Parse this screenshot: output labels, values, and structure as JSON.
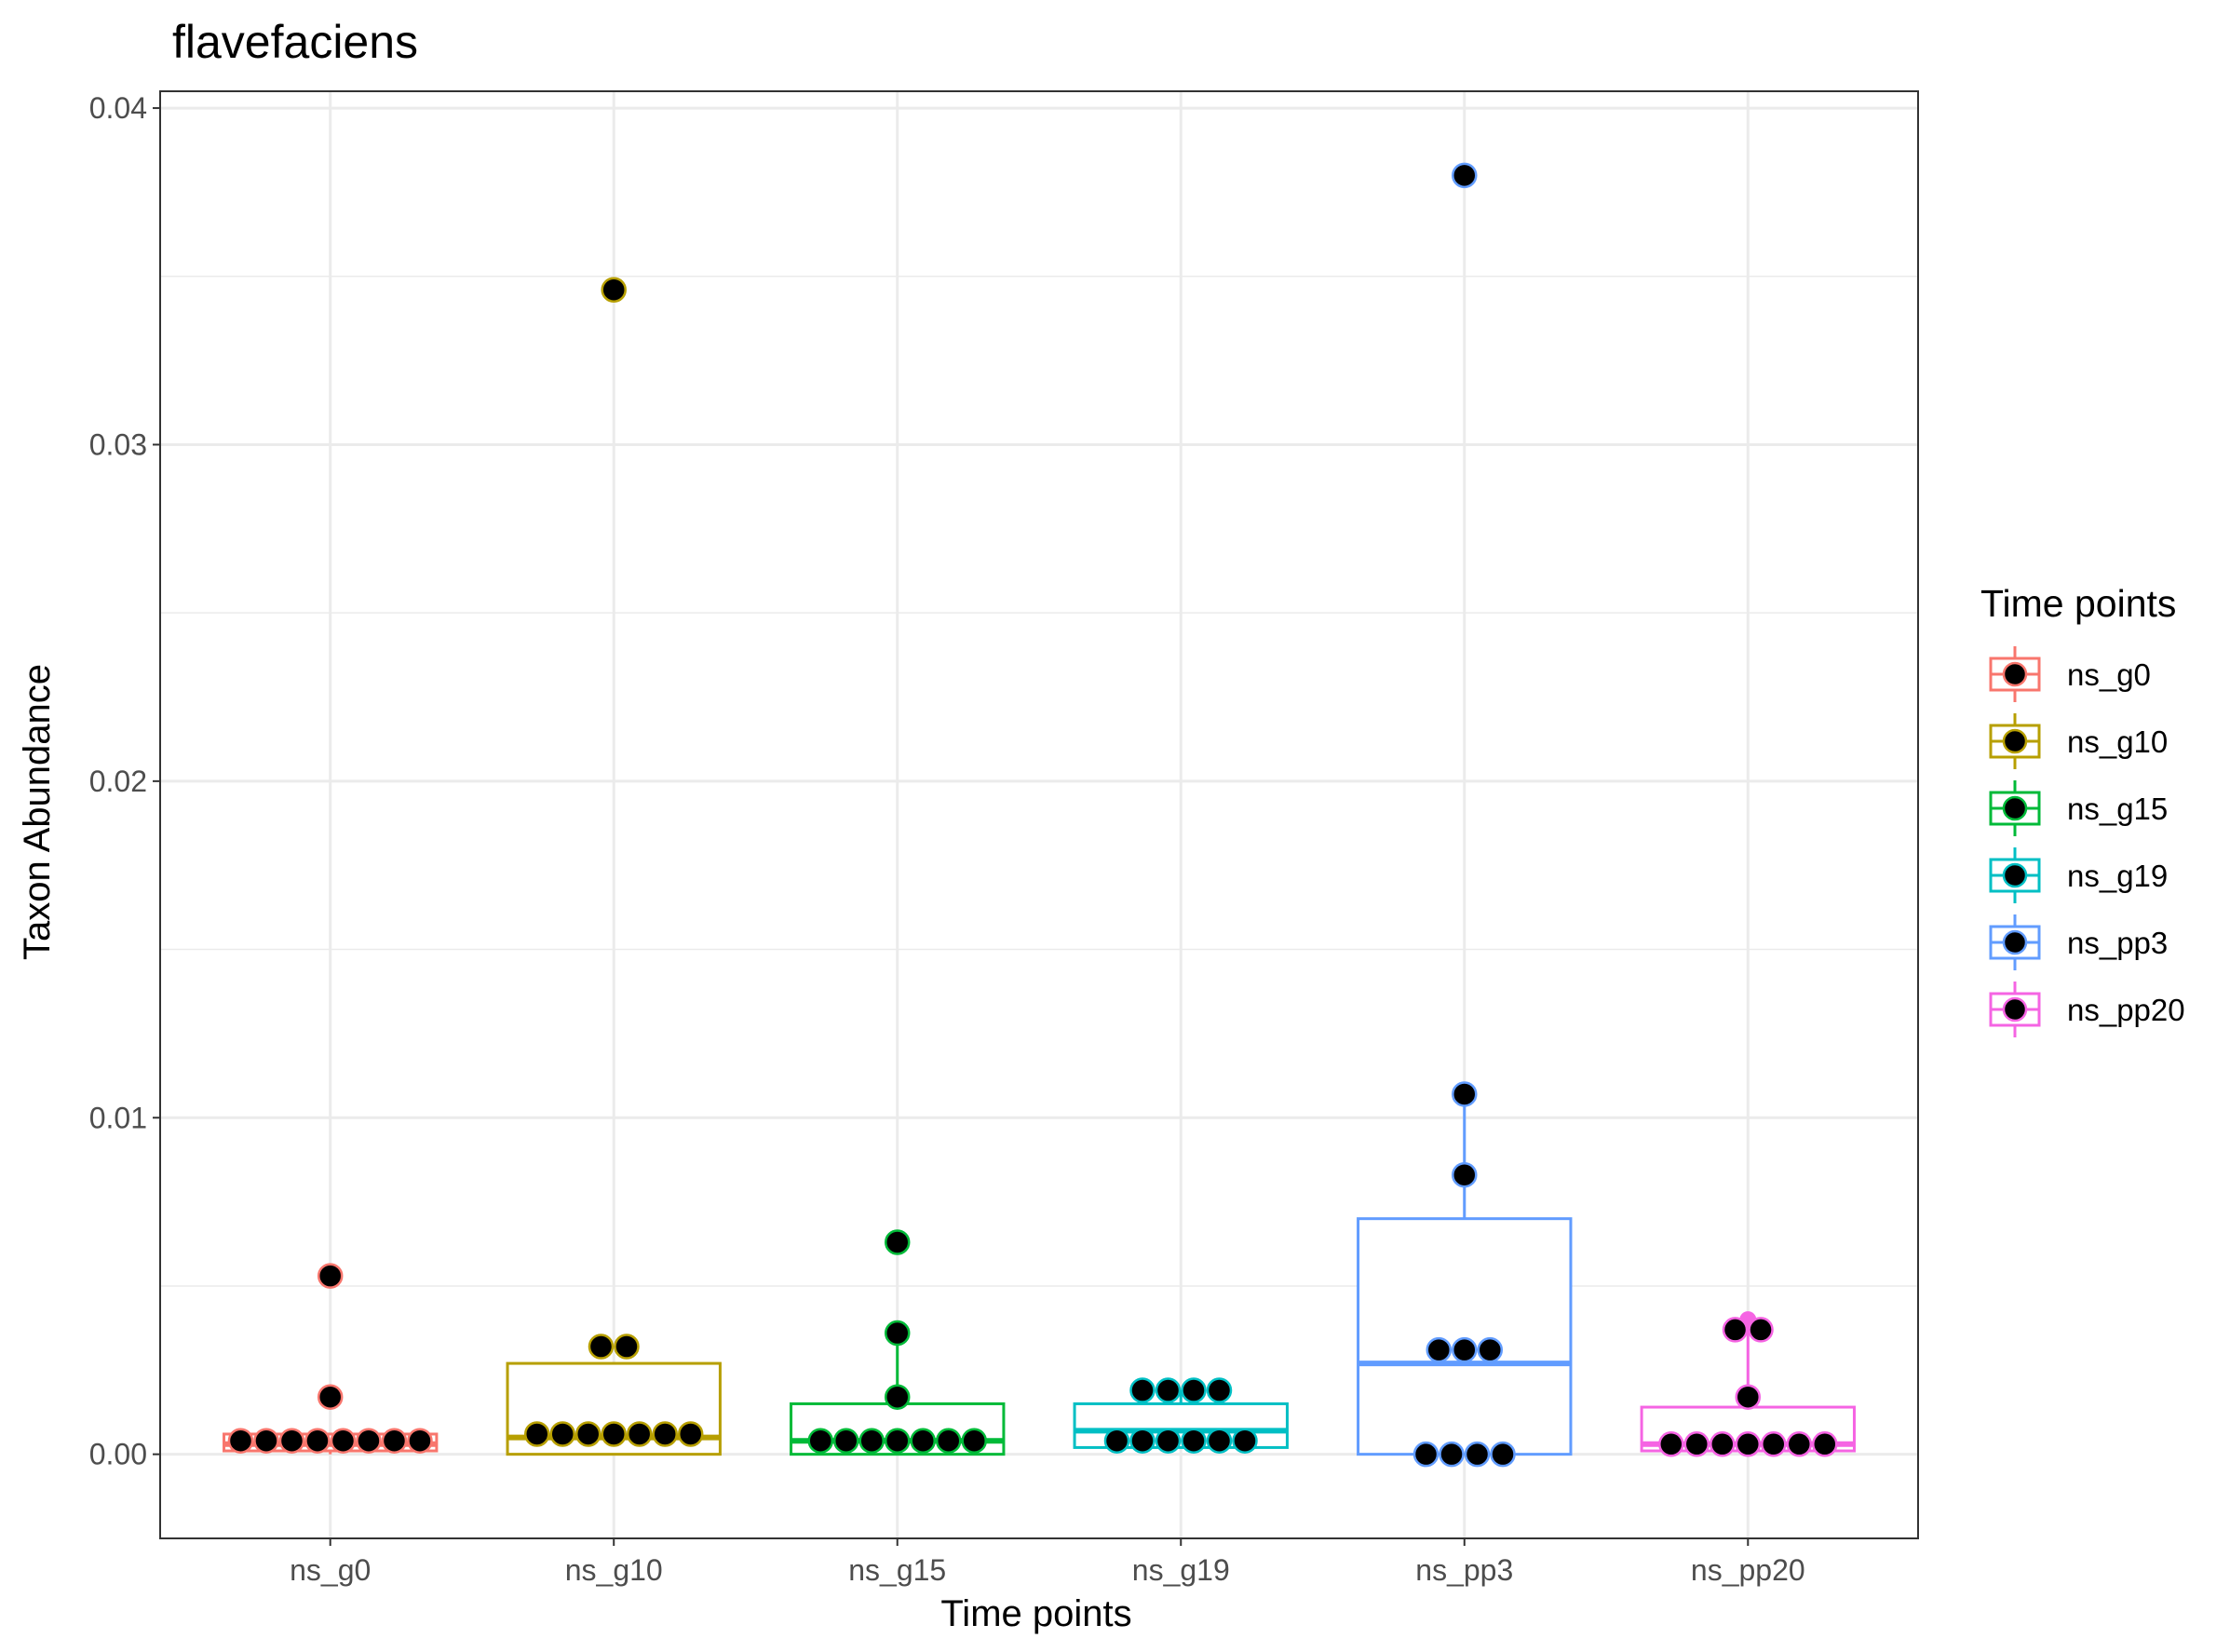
{
  "chart_data": {
    "type": "box",
    "title": "flavefaciens",
    "xlabel": "Time points",
    "ylabel": "Taxon Abundance",
    "ylim": [
      -0.0025,
      0.0405
    ],
    "yticks": [
      "0.00",
      "0.01",
      "0.02",
      "0.03",
      "0.04"
    ],
    "ytick_values": [
      0,
      0.01,
      0.02,
      0.03,
      0.04
    ],
    "grid": true,
    "legend_position": "right",
    "legend_title": "Time points",
    "categories": [
      "ns_g0",
      "ns_g10",
      "ns_g15",
      "ns_g19",
      "ns_pp3",
      "ns_pp20"
    ],
    "series": [
      {
        "name": "ns_g0",
        "color": "#F8766D",
        "box": {
          "q1": 0.0001,
          "median": 0.0003,
          "q3": 0.0006,
          "whisker_low": 0.0,
          "whisker_high": 0.0006
        },
        "outliers": [
          0.0053,
          0.0017
        ],
        "points": [
          0.0053,
          0.0017,
          0.0004,
          0.0004,
          0.0004,
          0.0004,
          0.0004,
          0.0004,
          0.0004,
          0.0004
        ]
      },
      {
        "name": "ns_g10",
        "color": "#B79F00",
        "box": {
          "q1": 0.0,
          "median": 0.0005,
          "q3": 0.0027,
          "whisker_low": 0.0,
          "whisker_high": 0.0027
        },
        "outliers": [
          0.0346
        ],
        "points": [
          0.0346,
          0.0032,
          0.0032,
          0.0006,
          0.0006,
          0.0006,
          0.0006,
          0.0006,
          0.0006,
          0.0006
        ]
      },
      {
        "name": "ns_g15",
        "color": "#00BA38",
        "box": {
          "q1": 0.0,
          "median": 0.0004,
          "q3": 0.0015,
          "whisker_low": 0.0,
          "whisker_high": 0.0036
        },
        "outliers": [
          0.0063
        ],
        "points": [
          0.0063,
          0.0036,
          0.0017,
          0.0004,
          0.0004,
          0.0004,
          0.0004,
          0.0004,
          0.0004,
          0.0004
        ]
      },
      {
        "name": "ns_g19",
        "color": "#00BFC4",
        "box": {
          "q1": 0.0002,
          "median": 0.0007,
          "q3": 0.0015,
          "whisker_low": 0.0002,
          "whisker_high": 0.0019
        },
        "outliers": [],
        "points": [
          0.0019,
          0.0019,
          0.0019,
          0.0019,
          0.0004,
          0.0004,
          0.0004,
          0.0004,
          0.0004,
          0.0004
        ]
      },
      {
        "name": "ns_pp3",
        "color": "#619CFF",
        "box": {
          "q1": 0.0,
          "median": 0.0027,
          "q3": 0.007,
          "whisker_low": 0.0,
          "whisker_high": 0.0107
        },
        "outliers": [
          0.038
        ],
        "points": [
          0.038,
          0.0107,
          0.0083,
          0.0031,
          0.0031,
          0.0031,
          0.0,
          0.0,
          0.0,
          0.0
        ]
      },
      {
        "name": "ns_pp20",
        "color": "#F564E3",
        "box": {
          "q1": 0.0001,
          "median": 0.0003,
          "q3": 0.0014,
          "whisker_low": 0.0,
          "whisker_high": 0.004
        },
        "outliers": [
          0.004
        ],
        "points": [
          0.0037,
          0.0037,
          0.0017,
          0.0003,
          0.0003,
          0.0003,
          0.0003,
          0.0003,
          0.0003,
          0.0003
        ]
      }
    ]
  }
}
